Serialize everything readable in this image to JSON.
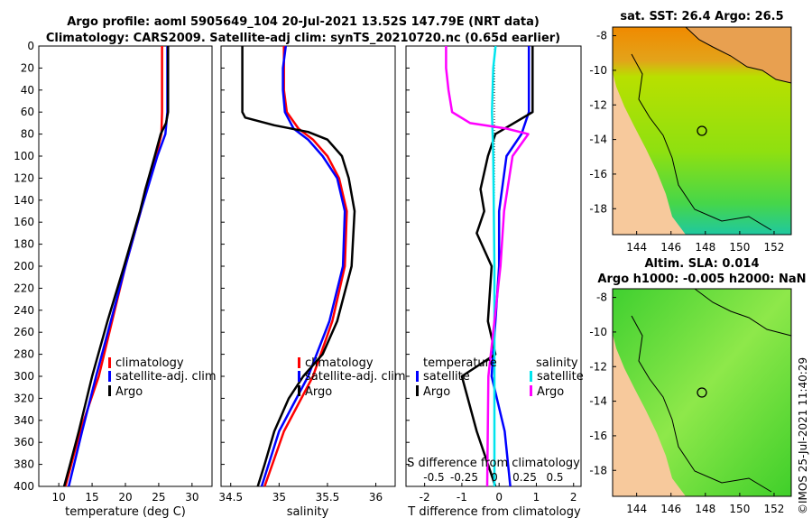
{
  "header": {
    "title_line1": "Argo profile: aoml 5905649_104 20-Jul-2021 13.52S 147.79E (NRT data)",
    "title_line2": "Climatology: CARS2009. Satellite-adj clim: synTS_20210720.nc (0.65d earlier)"
  },
  "colors": {
    "climatology": "#ff0000",
    "satellite": "#0000ff",
    "argo": "#000000",
    "sat_salinity": "#00e5ee",
    "argo_salinity": "#ff00ff",
    "land": "#f7c99c"
  },
  "chart_data": [
    {
      "type": "line",
      "title": "",
      "xlabel": "temperature (deg C)",
      "ylabel": "",
      "xlim": [
        7,
        33
      ],
      "ylim": [
        400,
        0
      ],
      "xticks": [
        "10",
        "15",
        "20",
        "25",
        "30"
      ],
      "yticks": [
        "0",
        "20",
        "40",
        "60",
        "80",
        "100",
        "120",
        "140",
        "160",
        "180",
        "200",
        "220",
        "240",
        "260",
        "280",
        "300",
        "320",
        "340",
        "360",
        "380",
        "400"
      ],
      "series": [
        {
          "name": "climatology",
          "depth": [
            0,
            60,
            80,
            100,
            130,
            150,
            200,
            250,
            300,
            350,
            400
          ],
          "values": [
            25.5,
            25.5,
            25.4,
            24.6,
            23.0,
            22.3,
            20.0,
            18.0,
            16.0,
            13.2,
            11.0
          ]
        },
        {
          "name": "satellite-adj. clim",
          "depth": [
            0,
            60,
            80,
            100,
            130,
            150,
            200,
            250,
            300,
            350,
            400
          ],
          "values": [
            26.3,
            26.3,
            26.0,
            24.8,
            23.3,
            22.3,
            20.0,
            17.8,
            15.6,
            13.5,
            11.5
          ]
        },
        {
          "name": "Argo",
          "depth": [
            0,
            60,
            70,
            80,
            100,
            130,
            150,
            200,
            250,
            300,
            320,
            350,
            380,
            400
          ],
          "values": [
            26.4,
            26.4,
            26.1,
            25.3,
            24.4,
            23.0,
            22.2,
            19.8,
            17.3,
            15.0,
            14.2,
            13.0,
            11.7,
            10.8
          ]
        }
      ],
      "legend": [
        "climatology",
        "satellite-adj. clim",
        "Argo"
      ]
    },
    {
      "type": "line",
      "xlabel": "salinity",
      "xlim": [
        34.4,
        36.2
      ],
      "ylim": [
        400,
        0
      ],
      "xticks": [
        "34.5",
        "35",
        "35.5",
        "36"
      ],
      "series": [
        {
          "name": "climatology",
          "depth": [
            0,
            20,
            40,
            60,
            75,
            85,
            100,
            120,
            150,
            200,
            250,
            300,
            350,
            400
          ],
          "values": [
            35.05,
            35.05,
            35.05,
            35.08,
            35.2,
            35.35,
            35.5,
            35.62,
            35.7,
            35.68,
            35.55,
            35.35,
            35.05,
            34.85
          ]
        },
        {
          "name": "satellite-adj. clim",
          "depth": [
            0,
            20,
            40,
            60,
            75,
            85,
            100,
            120,
            150,
            200,
            250,
            300,
            350,
            400
          ],
          "values": [
            35.07,
            35.04,
            35.04,
            35.06,
            35.15,
            35.3,
            35.45,
            35.6,
            35.68,
            35.66,
            35.52,
            35.3,
            35.0,
            34.82
          ]
        },
        {
          "name": "Argo",
          "depth": [
            0,
            60,
            65,
            72,
            78,
            85,
            100,
            120,
            150,
            200,
            250,
            280,
            300,
            320,
            350,
            380,
            400
          ],
          "values": [
            34.62,
            34.62,
            34.65,
            34.95,
            35.3,
            35.5,
            35.65,
            35.72,
            35.78,
            35.75,
            35.6,
            35.45,
            35.25,
            35.1,
            34.95,
            34.85,
            34.78
          ]
        }
      ],
      "legend": [
        "climatology",
        "satellite-adj. clim",
        "Argo"
      ]
    },
    {
      "type": "line",
      "xlabel": "T difference from climatology",
      "xlabel_top": "S difference from climatology",
      "xlim": [
        -2.5,
        2.2
      ],
      "ylim": [
        400,
        0
      ],
      "xticks": [
        "-2",
        "-1",
        "0",
        "1",
        "2"
      ],
      "xticks_top": [
        "-0.5",
        "-0.25",
        "0",
        "0.25",
        "0.5"
      ],
      "series": [
        {
          "name": "satellite (temperature)",
          "depth": [
            0,
            60,
            80,
            100,
            150,
            200,
            250,
            300,
            350,
            400
          ],
          "values": [
            0.8,
            0.8,
            0.6,
            0.2,
            0.0,
            0.0,
            -0.1,
            -0.2,
            0.15,
            0.3
          ]
        },
        {
          "name": "Argo (temperature)",
          "depth": [
            0,
            60,
            80,
            90,
            100,
            130,
            150,
            170,
            200,
            250,
            280,
            300,
            350,
            400
          ],
          "values": [
            0.9,
            0.9,
            -0.1,
            -0.2,
            -0.3,
            -0.5,
            -0.4,
            -0.6,
            -0.2,
            -0.3,
            -0.1,
            -1.0,
            -0.6,
            -0.1
          ]
        },
        {
          "name": "satellite (salinity)",
          "depth": [
            0,
            20,
            60,
            100,
            200,
            300,
            400
          ],
          "values": [
            0.01,
            -0.01,
            -0.02,
            -0.01,
            0.0,
            0.0,
            0.0
          ]
        },
        {
          "name": "Argo (salinity)",
          "depth": [
            0,
            20,
            40,
            60,
            70,
            75,
            80,
            100,
            150,
            200,
            300,
            400
          ],
          "values": [
            -0.4,
            -0.4,
            -0.38,
            -0.35,
            -0.2,
            0.1,
            0.28,
            0.15,
            0.08,
            0.05,
            -0.05,
            -0.06
          ]
        }
      ],
      "legend_temperature": {
        "heading": "temperature",
        "items": [
          "satellite",
          "Argo"
        ]
      },
      "legend_salinity": {
        "heading": "salinity",
        "items": [
          "satellite",
          "Argo"
        ]
      }
    },
    {
      "type": "heatmap",
      "title": "sat. SST: 26.4 Argo: 26.5",
      "xticks": [
        "144",
        "146",
        "148",
        "150",
        "152"
      ],
      "yticks": [
        "-8",
        "-10",
        "-12",
        "-14",
        "-16",
        "-18"
      ]
    },
    {
      "type": "heatmap",
      "title_line1": "Altim. SLA: 0.014",
      "title_line2": "Argo h1000: -0.005 h2000: NaN",
      "xticks": [
        "144",
        "146",
        "148",
        "150",
        "152"
      ],
      "yticks": [
        "-8",
        "-10",
        "-12",
        "-14",
        "-16",
        "-18"
      ]
    }
  ],
  "watermark": "©IMOS 25-Jul-2021 11:40:29"
}
